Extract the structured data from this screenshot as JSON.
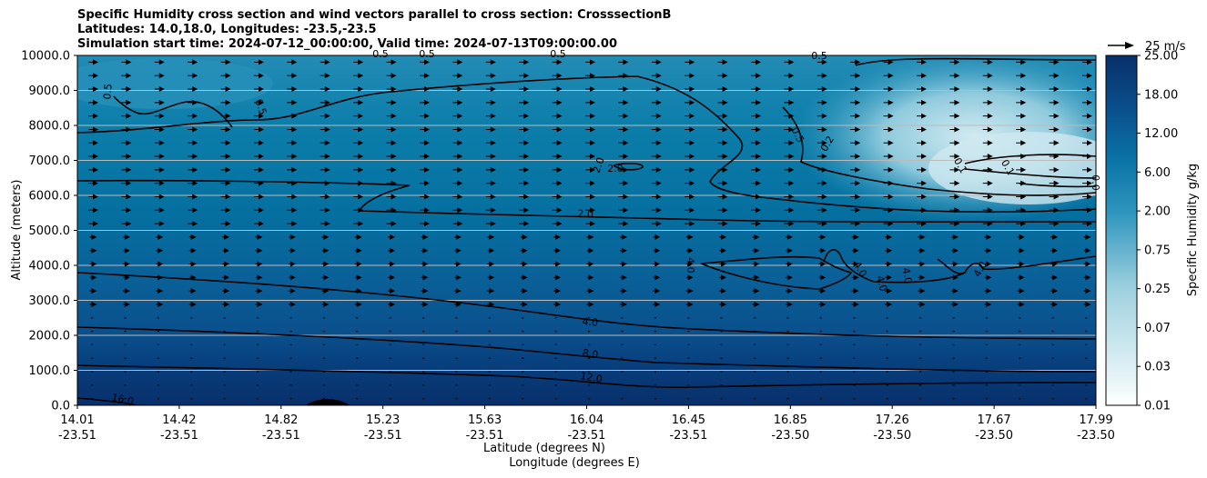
{
  "chart_data": {
    "type": "contour",
    "title_lines": [
      "Specific Humidity cross section and wind vectors parallel to cross section: CrosssectionB",
      "Latitudes: 14.0,18.0, Longitudes: -23.5,-23.5",
      "Simulation start time: 2024-07-12_00:00:00, Valid time: 2024-07-13T09:00:00.00"
    ],
    "ylabel": "Altitude (meters)",
    "xlabel_lines": [
      "Latitude (degrees N)",
      "Longitude (degrees E)"
    ],
    "ylim": [
      0,
      10000
    ],
    "yticks": [
      "0.0",
      "1000.0",
      "2000.0",
      "3000.0",
      "4000.0",
      "5000.0",
      "6000.0",
      "7000.0",
      "8000.0",
      "9000.0",
      "10000.0"
    ],
    "xticks": [
      {
        "lat": "14.01",
        "lon": "-23.51"
      },
      {
        "lat": "14.42",
        "lon": "-23.51"
      },
      {
        "lat": "14.82",
        "lon": "-23.51"
      },
      {
        "lat": "15.23",
        "lon": "-23.51"
      },
      {
        "lat": "15.63",
        "lon": "-23.51"
      },
      {
        "lat": "16.04",
        "lon": "-23.51"
      },
      {
        "lat": "16.45",
        "lon": "-23.51"
      },
      {
        "lat": "16.85",
        "lon": "-23.50"
      },
      {
        "lat": "17.26",
        "lon": "-23.50"
      },
      {
        "lat": "17.67",
        "lon": "-23.50"
      },
      {
        "lat": "17.99",
        "lon": "-23.50"
      }
    ],
    "colorbar": {
      "label": "Specific Humidity g/kg",
      "ticks": [
        "0.01",
        "0.03",
        "0.07",
        "0.25",
        "0.75",
        "2.00",
        "6.00",
        "12.00",
        "18.00",
        "25.00"
      ]
    },
    "quiver_key": "25 m/s",
    "contour_labels": [
      "16.0",
      "12.0",
      "8.0",
      "4.0",
      "4.0",
      "4.0",
      "4.0",
      "4.0",
      "4.0",
      "2.0",
      "2.0",
      "2.0",
      "0.5",
      "0.5",
      "0.5",
      "0.5",
      "0.5",
      "0.5",
      "0.5",
      "0.2",
      "0.1",
      "0.1",
      "0.0"
    ],
    "colors": {
      "deep": "#08306b",
      "mid": "#0570a0",
      "light": "#c6e3ec",
      "grid": "#bbbbbb"
    }
  }
}
